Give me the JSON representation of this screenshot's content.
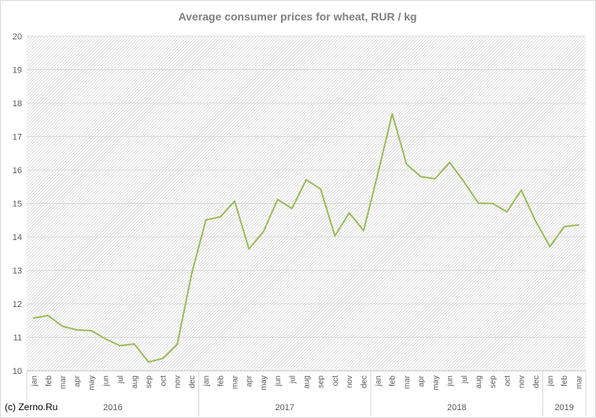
{
  "credit": "(c) Zerno.Ru",
  "chart_data": {
    "type": "line",
    "title": "Average consumer prices for wheat, RUR / kg",
    "xlabel": "",
    "ylabel": "",
    "ylim": [
      10,
      20
    ],
    "yticks": [
      10,
      11,
      12,
      13,
      14,
      15,
      16,
      17,
      18,
      19,
      20
    ],
    "grid": "hatched",
    "legend": "none",
    "color": "#9bbb59",
    "categories": [
      "jan",
      "feb",
      "mar",
      "apr",
      "may",
      "jun",
      "jul",
      "aug",
      "sep",
      "oct",
      "nov",
      "dec",
      "jan",
      "feb",
      "mar",
      "apr",
      "may",
      "jun",
      "jul",
      "aug",
      "sep",
      "oct",
      "nov",
      "dec",
      "jan",
      "feb",
      "mar",
      "apr",
      "may",
      "jun",
      "jul",
      "aug",
      "sep",
      "oct",
      "nov",
      "dec",
      "jan",
      "feb",
      "mar"
    ],
    "groups": [
      {
        "label": "2016",
        "count": 12
      },
      {
        "label": "2017",
        "count": 12
      },
      {
        "label": "2018",
        "count": 12
      },
      {
        "label": "2019",
        "count": 3
      }
    ],
    "series": [
      {
        "values": [
          11.58,
          11.65,
          11.33,
          11.22,
          11.2,
          10.95,
          10.75,
          10.8,
          10.26,
          10.37,
          10.79,
          12.9,
          14.51,
          14.6,
          15.07,
          13.64,
          14.15,
          15.12,
          14.85,
          15.71,
          15.43,
          14.03,
          14.72,
          14.19,
          15.9,
          17.68,
          16.17,
          15.8,
          15.74,
          16.23,
          15.65,
          15.01,
          15.0,
          14.75,
          15.4,
          14.47,
          13.71,
          14.31,
          14.36
        ]
      }
    ]
  }
}
